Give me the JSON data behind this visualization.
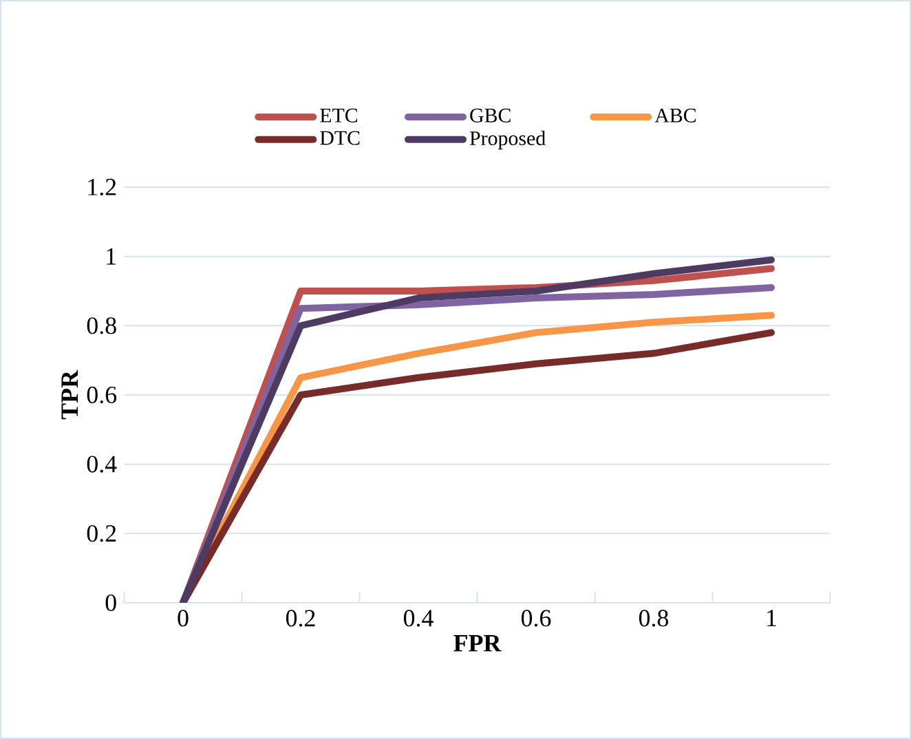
{
  "chart_data": {
    "type": "line",
    "xlabel": "FPR",
    "ylabel": "TPR",
    "categories": [
      "0",
      "0.2",
      "0.4",
      "0.6",
      "0.8",
      "1"
    ],
    "ylim": [
      0,
      1.2
    ],
    "yticks": [
      0,
      0.2,
      0.4,
      0.6,
      0.8,
      1,
      1.2
    ],
    "grid": "y",
    "legend": "top",
    "marker": "none",
    "line_style": "solid",
    "series": [
      {
        "name": "ETC",
        "color": "#c0504d",
        "values": [
          0,
          0.9,
          0.9,
          0.91,
          0.93,
          0.965
        ]
      },
      {
        "name": "GBC",
        "color": "#8064a2",
        "values": [
          0,
          0.85,
          0.86,
          0.88,
          0.89,
          0.91
        ]
      },
      {
        "name": "ABC",
        "color": "#f79646",
        "values": [
          0,
          0.65,
          0.72,
          0.78,
          0.81,
          0.83
        ]
      },
      {
        "name": "DTC",
        "color": "#772c2a",
        "values": [
          0,
          0.6,
          0.65,
          0.69,
          0.72,
          0.78
        ]
      },
      {
        "name": "Proposed",
        "color": "#4d3b62",
        "values": [
          0,
          0.8,
          0.88,
          0.9,
          0.95,
          0.99
        ]
      }
    ]
  }
}
